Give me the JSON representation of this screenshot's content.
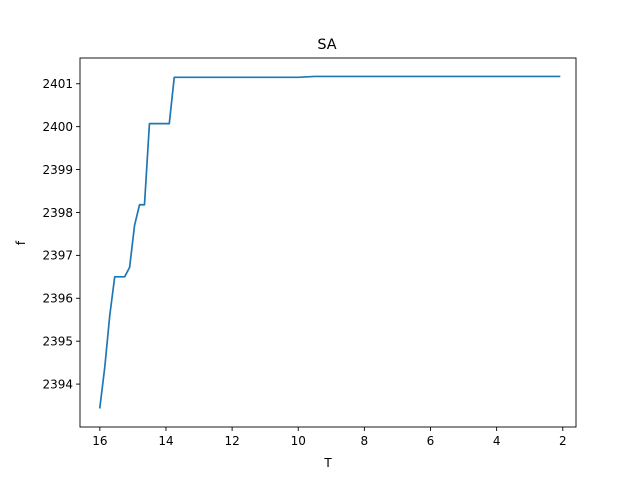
{
  "chart_data": {
    "type": "line",
    "title": "SA",
    "xlabel": "T",
    "ylabel": "f",
    "x_reversed": true,
    "xlim": [
      16.6,
      1.6
    ],
    "ylim": [
      2393.0,
      2401.6
    ],
    "grid": false,
    "xticks": [
      16,
      14,
      12,
      10,
      8,
      6,
      4,
      2
    ],
    "yticks": [
      2394,
      2395,
      2396,
      2397,
      2398,
      2399,
      2400,
      2401
    ],
    "line_color": "#1f77b4",
    "series": [
      {
        "x": [
          16.0,
          15.85,
          15.7,
          15.55,
          15.4,
          15.25,
          15.1,
          14.95,
          14.8,
          14.65,
          14.5,
          14.35,
          14.2,
          14.05,
          13.9,
          13.75,
          13.6,
          12.0,
          10.0,
          9.5,
          8.0,
          6.0,
          4.0,
          2.1
        ],
        "y": [
          2393.45,
          2394.4,
          2395.6,
          2396.5,
          2396.5,
          2396.5,
          2396.72,
          2397.7,
          2398.18,
          2398.18,
          2400.07,
          2400.07,
          2400.07,
          2400.07,
          2400.07,
          2401.15,
          2401.15,
          2401.15,
          2401.15,
          2401.17,
          2401.17,
          2401.17,
          2401.17,
          2401.17
        ]
      }
    ]
  }
}
